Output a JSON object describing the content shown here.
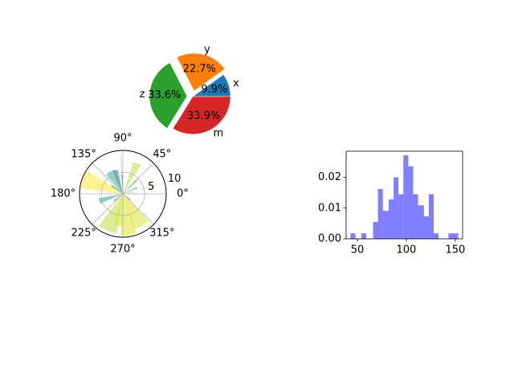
{
  "chart_data": [
    {
      "type": "pie",
      "labels": [
        "x",
        "y",
        "z",
        "m"
      ],
      "values": [
        9.9,
        22.7,
        33.6,
        33.9
      ],
      "autopct": [
        "9.9%",
        "22.7%",
        "33.6%",
        "33.9%"
      ],
      "colors": [
        "#1f77b4",
        "#ff7f0e",
        "#2ca02c",
        "#d62728"
      ],
      "exploded": [
        "y",
        "z"
      ],
      "start_angle_deg": 0
    },
    {
      "type": "bar",
      "projection": "polar",
      "theta_tick_labels": [
        "0°",
        "45°",
        "90°",
        "135°",
        "180°",
        "225°",
        "270°",
        "315°"
      ],
      "r_tick_labels": [
        "5",
        "10"
      ],
      "rlim": [
        0,
        10
      ],
      "bars": [
        {
          "theta_deg": 8,
          "r": 2.4,
          "width_deg": 3,
          "color": "#5ec962"
        },
        {
          "theta_deg": 23,
          "r": 3.6,
          "width_deg": 6,
          "color": "#2a788e"
        },
        {
          "theta_deg": 45,
          "r": 4.4,
          "width_deg": 7,
          "color": "#35b779"
        },
        {
          "theta_deg": 65,
          "r": 7.8,
          "width_deg": 14,
          "color": "#b5de2b"
        },
        {
          "theta_deg": 93,
          "r": 8.8,
          "width_deg": 1.5,
          "color": "#5ec962"
        },
        {
          "theta_deg": 92,
          "r": 4.5,
          "width_deg": 7,
          "color": "#21918c"
        },
        {
          "theta_deg": 108,
          "r": 5.7,
          "width_deg": 12,
          "color": "#3b528b"
        },
        {
          "theta_deg": 120,
          "r": 5.9,
          "width_deg": 22,
          "color": "#22a884"
        },
        {
          "theta_deg": 145,
          "r": 3.2,
          "width_deg": 10,
          "color": "#2a788e"
        },
        {
          "theta_deg": 160,
          "r": 9.8,
          "width_deg": 26,
          "color": "#fde725"
        },
        {
          "theta_deg": 197,
          "r": 5.7,
          "width_deg": 13,
          "color": "#21918c"
        },
        {
          "theta_deg": 218,
          "r": 2.6,
          "width_deg": 8,
          "color": "#3b528b"
        },
        {
          "theta_deg": 247,
          "r": 9.2,
          "width_deg": 28,
          "color": "#b5de2b"
        },
        {
          "theta_deg": 262,
          "r": 7.4,
          "width_deg": 14,
          "color": "#d8e219"
        },
        {
          "theta_deg": 278,
          "r": 9.6,
          "width_deg": 22,
          "color": "#d8e219"
        },
        {
          "theta_deg": 300,
          "r": 8.6,
          "width_deg": 26,
          "color": "#d8e219"
        },
        {
          "theta_deg": 321,
          "r": 2.2,
          "width_deg": 8,
          "color": "#3b528b"
        },
        {
          "theta_deg": 2,
          "r": 3.0,
          "width_deg": 2,
          "color": "#21918c"
        },
        {
          "theta_deg": 14,
          "r": 8.3,
          "width_deg": 1.5,
          "color": "#addc30"
        }
      ]
    },
    {
      "type": "bar",
      "subtype": "histogram",
      "color": "#0000ff",
      "alpha": 0.5,
      "xlim": [
        38.5,
        157.5
      ],
      "ylim": [
        0,
        0.0285
      ],
      "x_ticks": [
        50,
        100,
        150
      ],
      "y_ticks": [
        0.0,
        0.01,
        0.02
      ],
      "y_tick_labels": [
        "0.00",
        "0.01",
        "0.02"
      ],
      "bins": [
        {
          "x0": 43,
          "x1": 48,
          "y": 0.0018
        },
        {
          "x0": 54,
          "x1": 59,
          "y": 0.0018
        },
        {
          "x0": 66,
          "x1": 71,
          "y": 0.0055
        },
        {
          "x0": 71,
          "x1": 76,
          "y": 0.0162
        },
        {
          "x0": 76,
          "x1": 82,
          "y": 0.0091
        },
        {
          "x0": 82,
          "x1": 87,
          "y": 0.0128
        },
        {
          "x0": 87,
          "x1": 92,
          "y": 0.02
        },
        {
          "x0": 92,
          "x1": 97,
          "y": 0.0145
        },
        {
          "x0": 97,
          "x1": 102,
          "y": 0.0272
        },
        {
          "x0": 102,
          "x1": 107,
          "y": 0.0236
        },
        {
          "x0": 107,
          "x1": 112,
          "y": 0.0145
        },
        {
          "x0": 112,
          "x1": 118,
          "y": 0.0109
        },
        {
          "x0": 118,
          "x1": 123,
          "y": 0.0073
        },
        {
          "x0": 123,
          "x1": 128,
          "y": 0.0145
        },
        {
          "x0": 128,
          "x1": 133,
          "y": 0.0018
        },
        {
          "x0": 143,
          "x1": 148,
          "y": 0.0018
        },
        {
          "x0": 148,
          "x1": 153,
          "y": 0.0018
        }
      ]
    }
  ]
}
